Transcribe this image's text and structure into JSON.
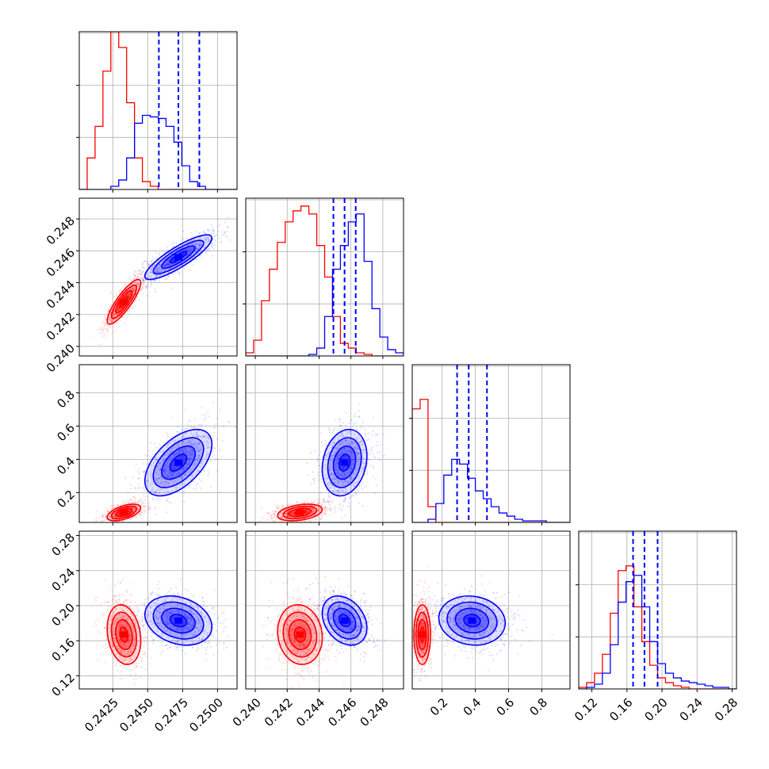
{
  "chart_data": {
    "type": "corner",
    "grid": true,
    "parameters": [
      {
        "ticks": [
          0.2425,
          0.245,
          0.2475,
          0.25
        ],
        "tick_labels": [
          "0.2425",
          "0.2450",
          "0.2475",
          "0.2500"
        ],
        "range": [
          0.2401,
          0.2514
        ]
      },
      {
        "ticks": [
          0.24,
          0.242,
          0.244,
          0.246,
          0.248
        ],
        "tick_labels": [
          "0.240",
          "0.242",
          "0.244",
          "0.246",
          "0.248"
        ],
        "range": [
          0.2394,
          0.2493
        ]
      },
      {
        "ticks": [
          0.2,
          0.4,
          0.6,
          0.8
        ],
        "tick_labels": [
          "0.2",
          "0.4",
          "0.6",
          "0.8"
        ],
        "range": [
          0.02,
          0.97
        ]
      },
      {
        "ticks": [
          0.12,
          0.16,
          0.2,
          0.24,
          0.28
        ],
        "tick_labels": [
          "0.12",
          "0.16",
          "0.20",
          "0.24",
          "0.28"
        ],
        "range": [
          0.105,
          0.285
        ]
      }
    ],
    "series": [
      {
        "color": "#ff0000",
        "means": [
          0.2433,
          0.2428,
          0.08,
          0.167
        ],
        "sigmas": [
          0.0006,
          0.0007,
          0.025,
          0.017
        ],
        "hist_y": [
          [
            0,
            0.2,
            0.4,
            0.75,
            1.0,
            0.9,
            0.55,
            0.2,
            0.05,
            0.02,
            0,
            0,
            0,
            0,
            0,
            0,
            0,
            0,
            0,
            0
          ],
          [
            0.02,
            0.1,
            0.35,
            0.55,
            0.72,
            0.85,
            0.92,
            0.95,
            0.9,
            0.7,
            0.5,
            0.25,
            0.08,
            0.05,
            0.02,
            0.01,
            0,
            0,
            0,
            0
          ],
          [
            0.72,
            0.78,
            0.1,
            0,
            0,
            0,
            0,
            0,
            0,
            0,
            0,
            0,
            0,
            0,
            0,
            0,
            0,
            0,
            0,
            0
          ],
          [
            0.01,
            0.04,
            0.1,
            0.22,
            0.48,
            0.75,
            0.78,
            0.52,
            0.3,
            0.15,
            0.07,
            0.04,
            0.02,
            0.01,
            0,
            0,
            0,
            0,
            0,
            0
          ]
        ],
        "quantiles": null
      },
      {
        "color": "#0000ff",
        "means": [
          0.2472,
          0.2456,
          0.38,
          0.183
        ],
        "sigmas": [
          0.0012,
          0.0007,
          0.1,
          0.014
        ],
        "hist_y": [
          [
            0,
            0,
            0,
            0,
            0.02,
            0.06,
            0.2,
            0.42,
            0.47,
            0.46,
            0.45,
            0.4,
            0.3,
            0.15,
            0.05,
            0.02,
            0,
            0,
            0,
            0
          ],
          [
            0,
            0,
            0,
            0,
            0,
            0,
            0,
            0,
            0.01,
            0.05,
            0.25,
            0.55,
            0.7,
            0.85,
            0.9,
            0.6,
            0.3,
            0.12,
            0.04,
            0.02
          ],
          [
            0,
            0,
            0.02,
            0.12,
            0.3,
            0.4,
            0.37,
            0.28,
            0.2,
            0.15,
            0.1,
            0.06,
            0.04,
            0.02,
            0.01,
            0.01,
            0.01,
            0,
            0,
            0
          ],
          [
            0,
            0.01,
            0.03,
            0.1,
            0.28,
            0.55,
            0.68,
            0.72,
            0.52,
            0.3,
            0.16,
            0.1,
            0.07,
            0.05,
            0.04,
            0.03,
            0.02,
            0.01,
            0.01,
            0
          ]
        ],
        "quantiles": [
          [
            0.2458,
            0.2472,
            0.2487
          ],
          [
            0.2449,
            0.2456,
            0.2463
          ],
          [
            0.29,
            0.36,
            0.47
          ],
          [
            0.167,
            0.18,
            0.195
          ]
        ]
      }
    ]
  }
}
